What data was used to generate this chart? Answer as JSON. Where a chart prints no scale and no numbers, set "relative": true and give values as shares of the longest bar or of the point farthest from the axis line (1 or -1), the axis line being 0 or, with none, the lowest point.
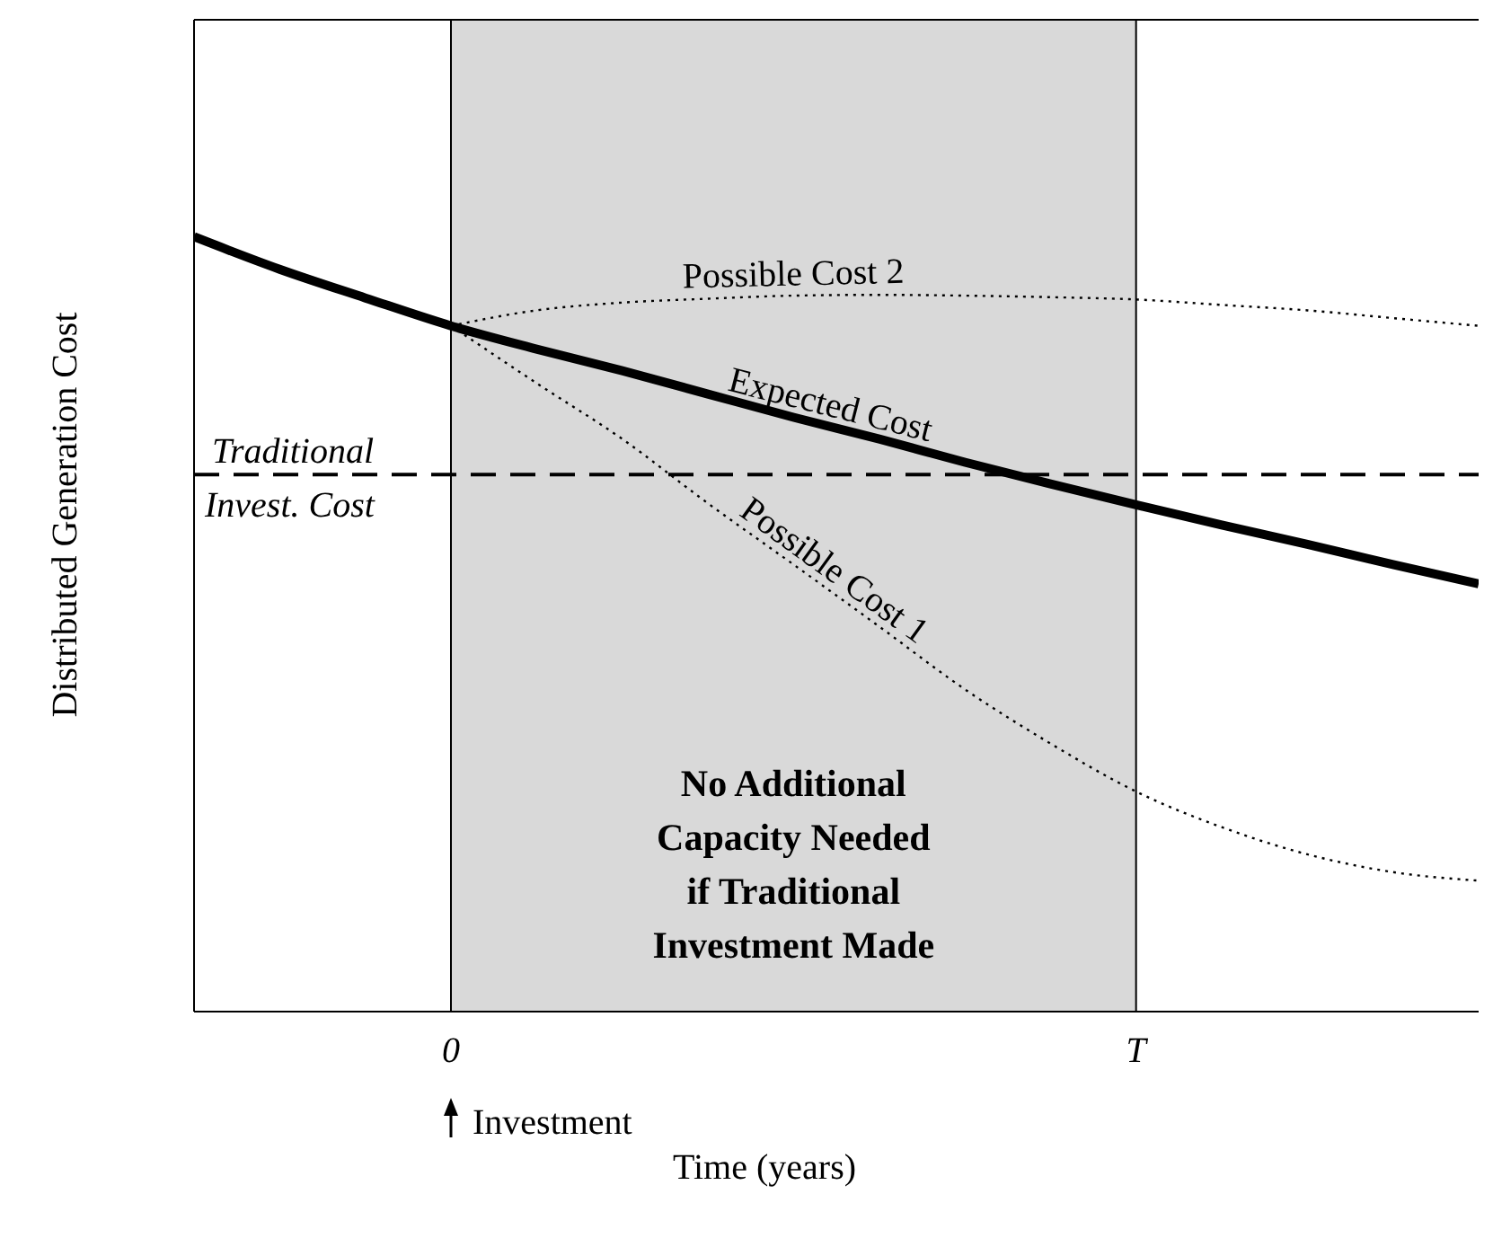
{
  "chart_data": {
    "type": "line",
    "relative": true,
    "xlabel": "Time (years)",
    "ylabel": "Distributed Generation Cost",
    "categories": [
      null,
      null,
      null,
      "0",
      null,
      null,
      null,
      null,
      null,
      null,
      null,
      "T",
      null,
      null,
      null,
      null
    ],
    "series": [
      {
        "name": "Expected Cost",
        "color": "#000000",
        "line_style": "solid",
        "values": [
          1,
          0.958,
          0.921,
          0.885,
          0.855,
          0.827,
          0.797,
          0.767,
          0.739,
          0.709,
          0.681,
          0.654,
          0.628,
          0.603,
          0.577,
          0.552
        ]
      },
      {
        "name": "Possible Cost 1",
        "color": "#000000",
        "line_style": "dotted",
        "values": [
          null,
          null,
          null,
          0.885,
          0.811,
          0.739,
          0.656,
          0.577,
          0.497,
          0.416,
          0.346,
          0.284,
          0.238,
          0.203,
          0.18,
          0.169
        ]
      },
      {
        "name": "Possible Cost 2",
        "color": "#000000",
        "line_style": "dotted",
        "values": [
          null,
          null,
          null,
          0.885,
          0.905,
          0.915,
          0.92,
          0.924,
          0.925,
          0.924,
          0.922,
          0.919,
          0.912,
          0.905,
          0.895,
          0.885
        ]
      }
    ],
    "ref_lines": [
      {
        "axis": "y",
        "value": 0.693,
        "label": "Traditional Invest. Cost",
        "line_style": "dashed",
        "color": "#000000"
      }
    ],
    "bands": [
      {
        "axis": "x",
        "from": "0",
        "to": "T",
        "label": "No Additional Capacity Needed if Traditional Investment Made",
        "color": "#d9d9d9"
      }
    ],
    "annotations": [
      "Investment"
    ],
    "legend": false,
    "grid": false,
    "marker": "none"
  }
}
